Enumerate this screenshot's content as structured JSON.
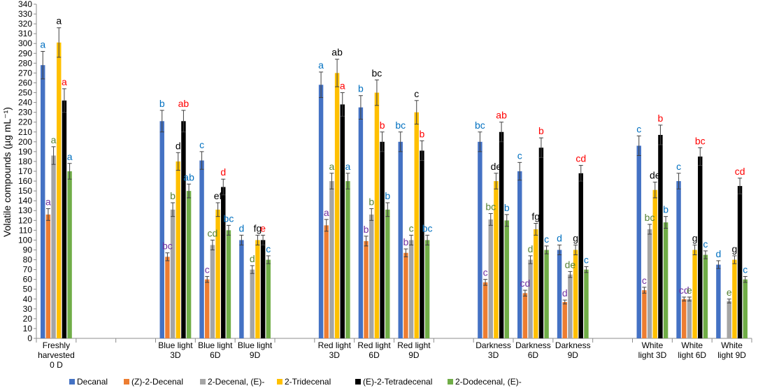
{
  "chart_data": {
    "type": "bar",
    "title": "",
    "xlabel": "",
    "ylabel": "Volatile compounds (µg mL⁻¹)",
    "ylim": [
      0,
      340
    ],
    "ytick_step": 10,
    "grid": false,
    "legend_position": "bottom",
    "group_slots": [
      0,
      3,
      4,
      5,
      7,
      8,
      9,
      11,
      12,
      13,
      15,
      16,
      17
    ],
    "total_slots": 18,
    "categories": [
      [
        "Freshly",
        "harvested",
        "0 D"
      ],
      [
        "Blue light",
        "3D"
      ],
      [
        "Blue light",
        "6D"
      ],
      [
        "Blue light",
        "9D"
      ],
      [
        "Red light",
        "3D"
      ],
      [
        "Red light",
        "6D"
      ],
      [
        "Red light",
        "9D"
      ],
      [
        "Darkness",
        "3D"
      ],
      [
        "Darkness",
        "6D"
      ],
      [
        "Darkness",
        "9D"
      ],
      [
        "White",
        "light 3D"
      ],
      [
        "White",
        "light 6D"
      ],
      [
        "White",
        "light 9D"
      ]
    ],
    "series": [
      {
        "name": "Decanal",
        "color": "#4472C4",
        "letter_color": "#0070C0",
        "values": [
          278,
          221,
          181,
          100,
          258,
          235,
          200,
          200,
          170,
          90,
          196,
          160,
          75
        ],
        "errors": [
          14,
          11,
          9,
          5,
          13,
          12,
          10,
          10,
          9,
          5,
          10,
          8,
          4
        ],
        "letters": [
          "a",
          "b",
          "c",
          "d",
          "a",
          "b",
          "bc",
          "bc",
          "c",
          "d",
          "c",
          "c",
          "d"
        ]
      },
      {
        "name": "(Z)-2-Decenal",
        "color": "#ED7D31",
        "letter_color": "#7030A0",
        "values": [
          126,
          83,
          60,
          0,
          115,
          99,
          87,
          57,
          46,
          37,
          49,
          40,
          0
        ],
        "errors": [
          6,
          4,
          3,
          0,
          6,
          5,
          4,
          3,
          3,
          2,
          3,
          2,
          0
        ],
        "letters": [
          "a",
          "bc",
          "c",
          "",
          "a",
          "b",
          "b",
          "c",
          "cd",
          "d",
          "c",
          "cd",
          ""
        ]
      },
      {
        "name": "2-Decenal, (E)-",
        "color": "#A5A5A5",
        "letter_color": "#548235",
        "values": [
          186,
          131,
          95,
          70,
          160,
          126,
          100,
          121,
          80,
          65,
          111,
          40,
          38
        ],
        "errors": [
          9,
          7,
          5,
          4,
          8,
          6,
          5,
          6,
          4,
          3,
          5,
          2,
          2
        ],
        "letters": [
          "a",
          "b",
          "cd",
          "d",
          "a",
          "b",
          "c",
          "bc",
          "d",
          "de",
          "bc",
          "e",
          "e"
        ]
      },
      {
        "name": "2-Tridecenal",
        "color": "#FFC000",
        "letter_color": "#000000",
        "values": [
          301,
          180,
          131,
          100,
          270,
          250,
          230,
          160,
          111,
          90,
          151,
          90,
          80
        ],
        "errors": [
          15,
          9,
          7,
          5,
          14,
          13,
          12,
          8,
          6,
          5,
          8,
          5,
          4
        ],
        "letters": [
          "a",
          "d",
          "ef",
          "fg",
          "ab",
          "bc",
          "c",
          "de",
          "fg",
          "g",
          "de",
          "g",
          "g"
        ]
      },
      {
        "name": "(E)-2-Tetradecenal",
        "color": "#000000",
        "letter_color": "#FF0000",
        "values": [
          242,
          221,
          154,
          100,
          238,
          200,
          191,
          210,
          194,
          168,
          207,
          185,
          155
        ],
        "errors": [
          12,
          11,
          8,
          5,
          12,
          10,
          10,
          10,
          10,
          8,
          10,
          9,
          8
        ],
        "letters": [
          "a",
          "ab",
          "d",
          "e",
          "a",
          "b",
          "b",
          "ab",
          "b",
          "cd",
          "b",
          "bc",
          "cd"
        ]
      },
      {
        "name": "2-Dodecenal, (E)-",
        "color": "#70AD47",
        "letter_color": "#0070C0",
        "values": [
          170,
          150,
          110,
          80,
          160,
          131,
          100,
          120,
          90,
          70,
          118,
          85,
          60
        ],
        "errors": [
          8,
          7,
          5,
          4,
          8,
          7,
          5,
          6,
          4,
          3,
          6,
          4,
          3
        ],
        "letters": [
          "a",
          "ab",
          "bc",
          "c",
          "a",
          "b",
          "bc",
          "b",
          "c",
          "c",
          "b",
          "c",
          "c"
        ]
      }
    ]
  }
}
